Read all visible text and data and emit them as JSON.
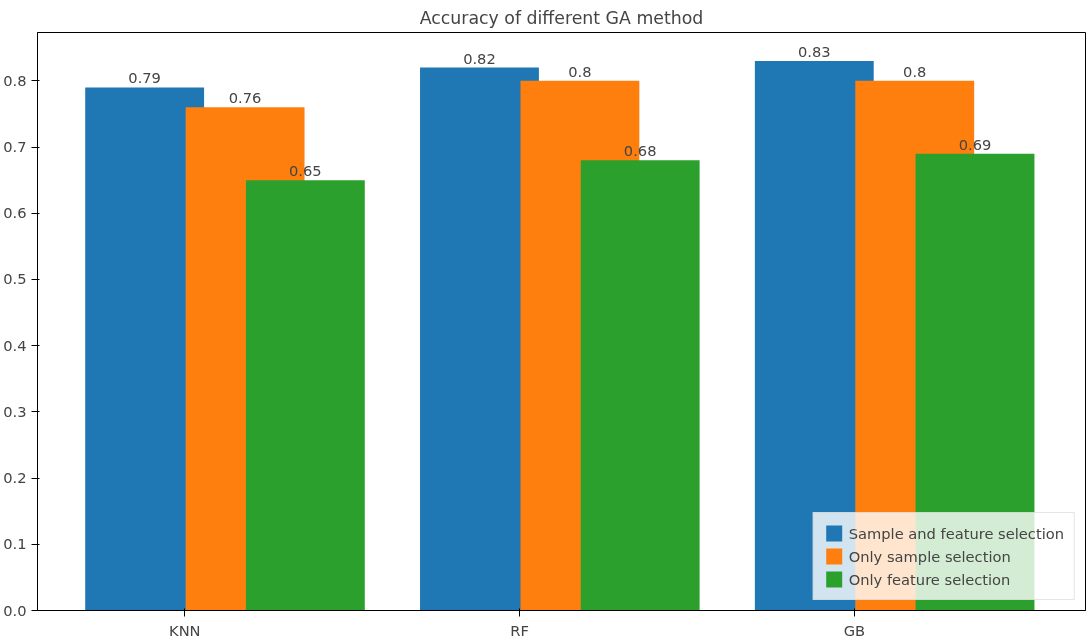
{
  "chart_data": {
    "type": "bar",
    "title": "Accuracy of different GA method",
    "categories": [
      "KNN",
      "RF",
      "GB"
    ],
    "series": [
      {
        "name": "Sample and feature selection",
        "color": "#1f77b4",
        "values": [
          0.79,
          0.82,
          0.83
        ]
      },
      {
        "name": "Only sample selection",
        "color": "#ff7f0e",
        "values": [
          0.76,
          0.8,
          0.8
        ]
      },
      {
        "name": "Only feature selection",
        "color": "#2ca02c",
        "values": [
          0.65,
          0.68,
          0.69
        ]
      }
    ],
    "ylim": [
      0,
      0.873
    ],
    "yticks": [
      {
        "value": 0,
        "label": "0.0"
      },
      0.1,
      0.2,
      0.3,
      0.4,
      0.5,
      0.6,
      0.7,
      0.8
    ],
    "grid": false,
    "legend": "bottom right",
    "data_labels": true
  }
}
